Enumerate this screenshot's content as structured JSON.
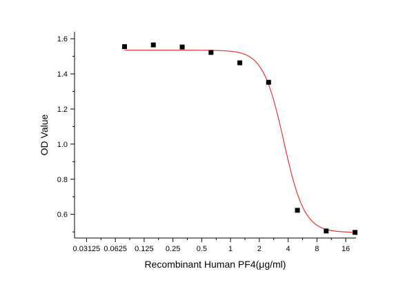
{
  "chart_data": {
    "type": "scatter",
    "title": "",
    "xlabel": "Recombinant Human PF4(μg/ml)",
    "ylabel": "OD Value",
    "x_scale": "log2",
    "xlim": [
      0.0234,
      20.5
    ],
    "ylim": [
      0.465,
      1.64
    ],
    "x_ticks": [
      0.03125,
      0.0625,
      0.125,
      0.25,
      0.5,
      1,
      2,
      4,
      8,
      16
    ],
    "x_tick_labels": [
      "0.03125",
      "0.0625",
      "0.125",
      "0.25",
      "0.5",
      "1",
      "2",
      "4",
      "8",
      "16"
    ],
    "y_ticks": [
      0.6,
      0.8,
      1.0,
      1.2,
      1.4,
      1.6
    ],
    "y_tick_labels": [
      "0.6",
      "0.8",
      "1.0",
      "1.2",
      "1.4",
      "1.6"
    ],
    "grid": false,
    "series": [
      {
        "marker": "square",
        "color": "#000000",
        "x": [
          0.078,
          0.156,
          0.3125,
          0.625,
          1.25,
          2.5,
          5,
          10,
          20
        ],
        "y": [
          1.555,
          1.565,
          1.553,
          1.522,
          1.463,
          1.352,
          0.623,
          0.505,
          0.497
        ]
      },
      {
        "style": "fitted-curve",
        "color": "#e8322e",
        "model": "4PL",
        "top": 1.535,
        "bottom": 0.497,
        "ec50": 3.6,
        "hill": 4.0,
        "x_range": [
          0.078,
          20
        ]
      }
    ]
  }
}
